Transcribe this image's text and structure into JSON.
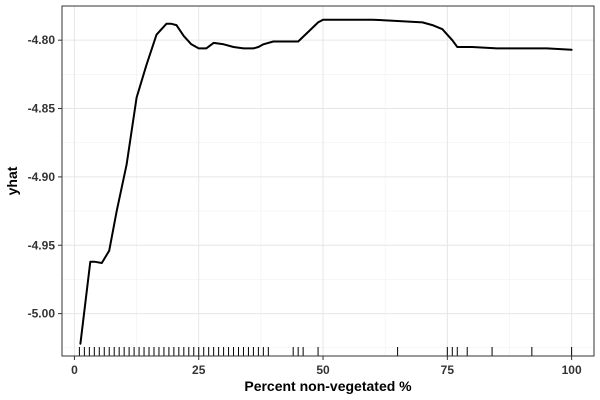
{
  "chart_data": {
    "type": "line",
    "title": "",
    "xlabel": "Percent non-vegetated %",
    "ylabel": "yhat",
    "xlim": [
      -2.5,
      104.5
    ],
    "ylim": [
      -5.031,
      -4.775
    ],
    "x_ticks": [
      0,
      25,
      50,
      75,
      100
    ],
    "x_tick_labels": [
      "0",
      "25",
      "50",
      "75",
      "100"
    ],
    "y_ticks": [
      -5.0,
      -4.95,
      -4.9,
      -4.85,
      -4.8
    ],
    "y_tick_labels": [
      "-5.00",
      "-4.95",
      "-4.90",
      "-4.85",
      "-4.80"
    ],
    "grid": true,
    "legend": "none",
    "series": [
      {
        "x": [
          1.2,
          3.2,
          4.0,
          5.5,
          7.0,
          8.5,
          10.5,
          12.5,
          14.5,
          16.5,
          18.5,
          19.5,
          20.5,
          22.0,
          23.5,
          25.0,
          26.5,
          28.0,
          30.0,
          32.0,
          34.0,
          36.0,
          37.0,
          38.0,
          40.0,
          43.0,
          45.0,
          47.0,
          49.0,
          50.0,
          52.0,
          55.0,
          60.0,
          65.0,
          70.0,
          72.0,
          74.0,
          75.0,
          76.0,
          77.0,
          80.0,
          85.0,
          90.0,
          95.0,
          100.0
        ],
        "y": [
          -5.022,
          -4.962,
          -4.962,
          -4.963,
          -4.954,
          -4.925,
          -4.891,
          -4.842,
          -4.818,
          -4.796,
          -4.788,
          -4.788,
          -4.789,
          -4.797,
          -4.803,
          -4.806,
          -4.806,
          -4.802,
          -4.803,
          -4.805,
          -4.806,
          -4.806,
          -4.805,
          -4.803,
          -4.801,
          -4.801,
          -4.801,
          -4.794,
          -4.787,
          -4.785,
          -4.785,
          -4.785,
          -4.785,
          -4.786,
          -4.787,
          -4.789,
          -4.792,
          -4.796,
          -4.8,
          -4.805,
          -4.805,
          -4.806,
          -4.806,
          -4.806,
          -4.807
        ]
      }
    ],
    "rug_x": [
      1,
      2,
      3,
      4,
      5,
      6,
      7,
      8,
      9,
      10,
      11,
      12,
      13,
      14,
      15,
      16,
      17,
      18,
      19,
      20,
      21,
      22,
      23,
      24,
      25,
      26,
      27,
      28,
      29,
      30,
      31,
      32,
      33,
      34,
      35,
      36,
      37,
      38,
      39,
      44,
      45,
      46,
      49,
      65,
      75,
      76,
      77,
      79,
      84,
      92,
      100
    ]
  }
}
